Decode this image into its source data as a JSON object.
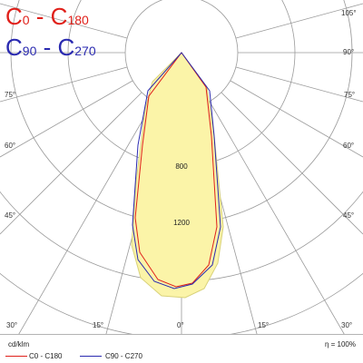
{
  "title_c0": {
    "prefix": "C",
    "a": "0",
    "sep": " - C",
    "b": "180",
    "color": "#e0201a"
  },
  "title_c90": {
    "prefix": "C",
    "a": "90",
    "sep": " - C",
    "b": "270",
    "color": "#2a2ab0"
  },
  "angles": {
    "a105_right": "105°",
    "a90_right": "90°",
    "a75_left": "75°",
    "a75_right": "75°",
    "a60_left": "60°",
    "a60_right": "60°",
    "a45_left": "45°",
    "a45_right": "45°",
    "a30_left": "30°",
    "a15_left": "15°",
    "a0": "0°",
    "a15_right": "15°",
    "a30_right": "30°"
  },
  "rings": {
    "r800": "800",
    "r1200": "1200"
  },
  "units": "cd/klm",
  "efficiency": "η = 100%",
  "legend": {
    "c0": "C0 - C180",
    "c90": "C90 - C270"
  },
  "colors": {
    "c0": "#e0201a",
    "c90": "#2a2ab0",
    "fill": "#fbf4a8",
    "fill_edge": "#d9d27a",
    "grid": "#9a9a9a"
  }
}
